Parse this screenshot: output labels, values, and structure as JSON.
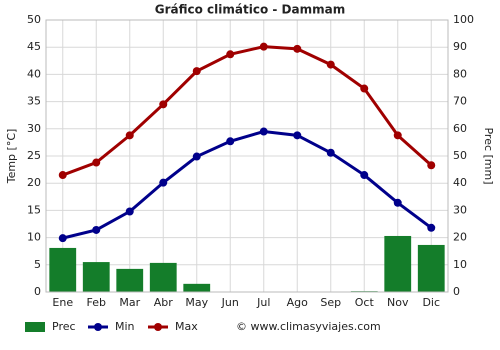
{
  "chart_data": {
    "type": "combo",
    "title": "Gráfico climático - Dammam",
    "categories": [
      "Ene",
      "Feb",
      "Mar",
      "Abr",
      "May",
      "Jun",
      "Jul",
      "Ago",
      "Sep",
      "Oct",
      "Nov",
      "Dic"
    ],
    "y_label": "Temp [°C]",
    "y2_label": "Prec [mm]",
    "ylim": [
      0,
      50
    ],
    "yticks": [
      0,
      5,
      10,
      15,
      20,
      25,
      30,
      35,
      40,
      45,
      50
    ],
    "y2lim": [
      0,
      100
    ],
    "y2ticks": [
      0,
      10,
      20,
      30,
      40,
      50,
      60,
      70,
      80,
      90,
      100
    ],
    "grid": true,
    "series": [
      {
        "name": "Prec",
        "kind": "bar",
        "axis": "y2",
        "color": "#147d2a",
        "values": [
          16.2,
          11,
          8.5,
          10.7,
          3,
          0,
          0,
          0,
          0,
          0.3,
          20.6,
          17.3
        ]
      },
      {
        "name": "Min",
        "kind": "line",
        "color": "#00008b",
        "values": [
          9.9,
          11.4,
          14.8,
          20.1,
          24.9,
          27.7,
          29.5,
          28.8,
          25.6,
          21.5,
          16.4,
          11.8
        ]
      },
      {
        "name": "Max",
        "kind": "line",
        "color": "#a00000",
        "values": [
          21.5,
          23.8,
          28.8,
          34.5,
          40.6,
          43.7,
          45.1,
          44.7,
          41.8,
          37.4,
          28.8,
          23.3
        ]
      }
    ],
    "source": "© www.climasyviajes.com"
  }
}
